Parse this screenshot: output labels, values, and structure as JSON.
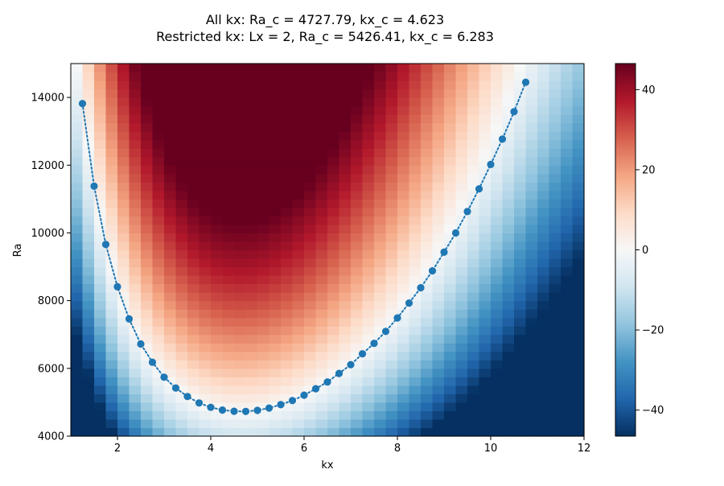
{
  "chart_data": {
    "type": "heatmap",
    "title_lines": [
      "All kx: Ra_c = 4727.79, kx_c = 4.623",
      "Restricted kx: Lx = 2, Ra_c = 5426.41, kx_c = 6.283"
    ],
    "xlabel": "kx",
    "ylabel": "Ra",
    "xlim": [
      1.0,
      12.0
    ],
    "ylim": [
      4000,
      15000
    ],
    "x_ticks": [
      2,
      4,
      6,
      8,
      10,
      12
    ],
    "x_tick_labels": [
      "2",
      "4",
      "6",
      "8",
      "10",
      "12"
    ],
    "y_ticks": [
      4000,
      6000,
      8000,
      10000,
      12000,
      14000
    ],
    "y_tick_labels": [
      "4000",
      "6000",
      "8000",
      "10000",
      "12000",
      "14000"
    ],
    "colormap": "RdBu_r",
    "color_range": [
      -46.5,
      46.5
    ],
    "colorbar_ticks": [
      -40,
      -20,
      0,
      20,
      40
    ],
    "colorbar_tick_labels": [
      "−40",
      "−20",
      "0",
      "20",
      "40"
    ],
    "grid_resolution": {
      "nx": 44,
      "ny": 44
    },
    "marginal_curve": {
      "style": "dotted line with circle markers",
      "color": "#1f77b4",
      "points": [
        [
          1.25,
          13820
        ],
        [
          1.5,
          11380
        ],
        [
          1.75,
          9660
        ],
        [
          2.0,
          8410
        ],
        [
          2.25,
          7460
        ],
        [
          2.5,
          6720
        ],
        [
          2.75,
          6180
        ],
        [
          3.0,
          5740
        ],
        [
          3.25,
          5420
        ],
        [
          3.5,
          5170
        ],
        [
          3.75,
          4980
        ],
        [
          4.0,
          4850
        ],
        [
          4.25,
          4770
        ],
        [
          4.5,
          4735
        ],
        [
          4.75,
          4730
        ],
        [
          5.0,
          4760
        ],
        [
          5.25,
          4830
        ],
        [
          5.5,
          4930
        ],
        [
          5.75,
          5050
        ],
        [
          6.0,
          5210
        ],
        [
          6.25,
          5400
        ],
        [
          6.5,
          5600
        ],
        [
          6.75,
          5850
        ],
        [
          7.0,
          6110
        ],
        [
          7.25,
          6430
        ],
        [
          7.5,
          6740
        ],
        [
          7.75,
          7090
        ],
        [
          8.0,
          7490
        ],
        [
          8.25,
          7930
        ],
        [
          8.5,
          8380
        ],
        [
          8.75,
          8880
        ],
        [
          9.0,
          9430
        ],
        [
          9.25,
          10000
        ],
        [
          9.5,
          10630
        ],
        [
          9.75,
          11300
        ],
        [
          10.0,
          12020
        ],
        [
          10.25,
          12770
        ],
        [
          10.5,
          13580
        ],
        [
          10.75,
          14450
        ]
      ]
    }
  }
}
